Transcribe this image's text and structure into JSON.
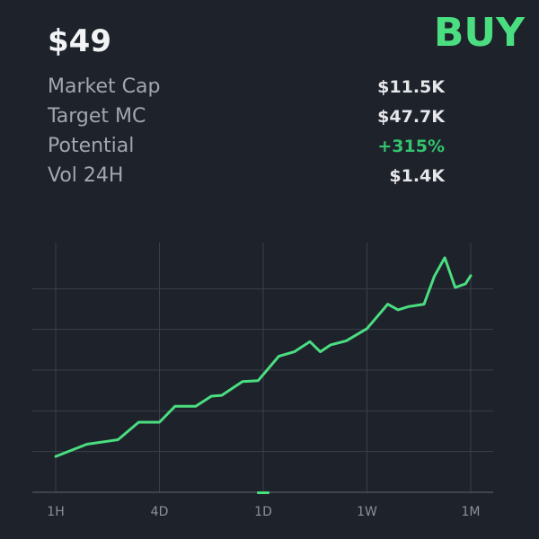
{
  "header": {
    "price": "$49",
    "action": "BUY"
  },
  "stats": [
    {
      "label": "Market Cap",
      "value": "$11.5K",
      "tone": "neutral"
    },
    {
      "label": "Target MC",
      "value": "$47.7K",
      "tone": "neutral"
    },
    {
      "label": "Potential",
      "value": "+315%",
      "tone": "positive"
    },
    {
      "label": "Vol 24H",
      "value": "$1.4K",
      "tone": "neutral"
    }
  ],
  "colors": {
    "background": "#1e222b",
    "accent": "#4ade80",
    "positive": "#34c46e",
    "grid": "#3a3f49"
  },
  "chart_data": {
    "type": "line",
    "title": "",
    "xlabel": "",
    "ylabel": "",
    "x_tick_labels": [
      "1H",
      "4D",
      "1D",
      "1W",
      "1M"
    ],
    "active_tick": "1D",
    "grid": true,
    "ylim": [
      0,
      6
    ],
    "series": [
      {
        "values": [
          [
            0.0,
            0.88
          ],
          [
            0.3,
            1.18
          ],
          [
            0.6,
            1.29
          ],
          [
            0.8,
            1.72
          ],
          [
            1.0,
            1.72
          ],
          [
            1.15,
            2.11
          ],
          [
            1.35,
            2.11
          ],
          [
            1.5,
            2.36
          ],
          [
            1.6,
            2.38
          ],
          [
            1.8,
            2.72
          ],
          [
            1.95,
            2.74
          ],
          [
            2.15,
            3.34
          ],
          [
            2.3,
            3.45
          ],
          [
            2.45,
            3.7
          ],
          [
            2.55,
            3.45
          ],
          [
            2.65,
            3.62
          ],
          [
            2.8,
            3.72
          ],
          [
            3.0,
            4.02
          ],
          [
            3.1,
            4.32
          ],
          [
            3.2,
            4.62
          ],
          [
            3.3,
            4.48
          ],
          [
            3.4,
            4.56
          ],
          [
            3.55,
            4.62
          ],
          [
            3.65,
            5.31
          ],
          [
            3.75,
            5.76
          ],
          [
            3.85,
            5.03
          ],
          [
            3.95,
            5.12
          ],
          [
            4.0,
            5.32
          ]
        ]
      }
    ]
  }
}
